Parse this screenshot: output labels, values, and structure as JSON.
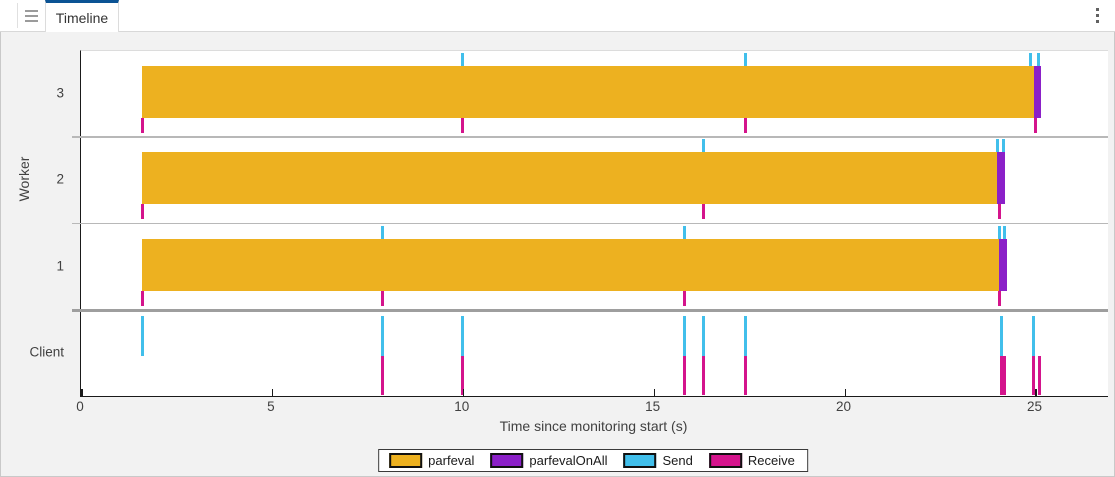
{
  "toolbar": {
    "tab_label": "Timeline"
  },
  "icons": {
    "grip": "hamburger-grip",
    "menu": "kebab-vertical-dots"
  },
  "colors": {
    "tab_accent": "#0B5394",
    "axis": "#1A1A1A",
    "lane_divider": "#B8B8B8",
    "group_divider": "#9E9E9E",
    "background": "#F2F2F2"
  },
  "chart_data": {
    "type": "timeline",
    "xlabel": "Time since monitoring start (s)",
    "ylabel": "Worker",
    "x_ticks": [
      0,
      5,
      10,
      15,
      20,
      25
    ],
    "x_max": 26.9,
    "legend_position": "south",
    "legend": [
      {
        "label": "parfeval",
        "color": "#EDB120"
      },
      {
        "label": "parfevalOnAll",
        "color": "#8B20C8"
      },
      {
        "label": "Send",
        "color": "#41BFEB"
      },
      {
        "label": "Receive",
        "color": "#D4148C"
      }
    ],
    "lanes": [
      {
        "label": "3",
        "type": "worker",
        "bars": [
          {
            "series": "parfeval",
            "start": 1.6,
            "end": 24.95
          },
          {
            "series": "parfevalOnAll",
            "start": 24.95,
            "end": 25.15
          }
        ],
        "send": [
          10.0,
          17.4,
          24.87,
          25.08
        ],
        "receive": [
          1.6,
          10.0,
          17.4,
          25.0
        ]
      },
      {
        "label": "2",
        "type": "worker",
        "bars": [
          {
            "series": "parfeval",
            "start": 1.6,
            "end": 24.0
          },
          {
            "series": "parfevalOnAll",
            "start": 24.0,
            "end": 24.2
          }
        ],
        "send": [
          16.3,
          24.0,
          24.15
        ],
        "receive": [
          1.6,
          16.3,
          24.05
        ]
      },
      {
        "label": "1",
        "type": "worker",
        "bars": [
          {
            "series": "parfeval",
            "start": 1.6,
            "end": 24.05
          },
          {
            "series": "parfevalOnAll",
            "start": 24.05,
            "end": 24.25
          }
        ],
        "send": [
          7.9,
          15.8,
          24.05,
          24.18
        ],
        "receive": [
          1.6,
          7.9,
          15.8,
          24.05
        ]
      },
      {
        "label": "Client",
        "type": "client",
        "bars": [],
        "send": [
          1.6,
          7.9,
          10.0,
          15.8,
          16.3,
          17.4,
          24.1,
          24.95
        ],
        "receive": [
          7.9,
          10.0,
          15.8,
          16.3,
          17.4,
          24.1,
          24.2,
          24.95,
          25.1
        ]
      }
    ]
  }
}
